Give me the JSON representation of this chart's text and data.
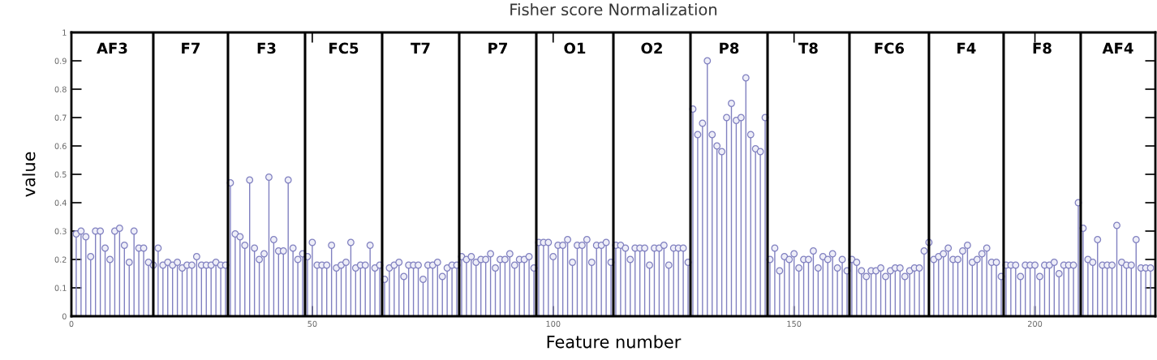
{
  "chart_data": {
    "type": "lollipop",
    "title": "Fisher score Normalization",
    "xlabel": "Feature number",
    "ylabel": "value",
    "x": [
      1,
      2,
      3,
      4,
      5,
      6,
      7,
      8,
      9,
      10,
      11,
      12,
      13,
      14,
      15,
      16,
      17,
      18,
      19,
      20,
      21,
      22,
      23,
      24,
      25,
      26,
      27,
      28,
      29,
      30,
      31,
      32,
      33,
      34,
      35,
      36,
      37,
      38,
      39,
      40,
      41,
      42,
      43,
      44,
      45,
      46,
      47,
      48,
      49,
      50,
      51,
      52,
      53,
      54,
      55,
      56,
      57,
      58,
      59,
      60,
      61,
      62,
      63,
      64,
      65,
      66,
      67,
      68,
      69,
      70,
      71,
      72,
      73,
      74,
      75,
      76,
      77,
      78,
      79,
      80,
      81,
      82,
      83,
      84,
      85,
      86,
      87,
      88,
      89,
      90,
      91,
      92,
      93,
      94,
      95,
      96,
      97,
      98,
      99,
      100,
      101,
      102,
      103,
      104,
      105,
      106,
      107,
      108,
      109,
      110,
      111,
      112,
      113,
      114,
      115,
      116,
      117,
      118,
      119,
      120,
      121,
      122,
      123,
      124,
      125,
      126,
      127,
      128,
      129,
      130,
      131,
      132,
      133,
      134,
      135,
      136,
      137,
      138,
      139,
      140,
      141,
      142,
      143,
      144,
      145,
      146,
      147,
      148,
      149,
      150,
      151,
      152,
      153,
      154,
      155,
      156,
      157,
      158,
      159,
      160,
      161,
      162,
      163,
      164,
      165,
      166,
      167,
      168,
      169,
      170,
      171,
      172,
      173,
      174,
      175,
      176,
      177,
      178,
      179,
      180,
      181,
      182,
      183,
      184,
      185,
      186,
      187,
      188,
      189,
      190,
      191,
      192,
      193,
      194,
      195,
      196,
      197,
      198,
      199,
      200,
      201,
      202,
      203,
      204,
      205,
      206,
      207,
      208,
      209,
      210,
      211,
      212,
      213,
      214,
      215,
      216,
      217,
      218,
      219,
      220,
      221,
      222,
      223,
      224
    ],
    "series": [
      {
        "color": "#8080c0",
        "values": [
          0.29,
          0.3,
          0.28,
          0.21,
          0.3,
          0.3,
          0.24,
          0.2,
          0.3,
          0.31,
          0.25,
          0.19,
          0.3,
          0.24,
          0.24,
          0.19,
          0.18,
          0.24,
          0.18,
          0.19,
          0.18,
          0.19,
          0.17,
          0.18,
          0.18,
          0.21,
          0.18,
          0.18,
          0.18,
          0.19,
          0.18,
          0.18,
          0.47,
          0.29,
          0.28,
          0.25,
          0.48,
          0.24,
          0.2,
          0.22,
          0.49,
          0.27,
          0.23,
          0.23,
          0.48,
          0.24,
          0.2,
          0.22,
          0.21,
          0.26,
          0.18,
          0.18,
          0.18,
          0.25,
          0.17,
          0.18,
          0.19,
          0.26,
          0.17,
          0.18,
          0.18,
          0.25,
          0.17,
          0.18,
          0.13,
          0.17,
          0.18,
          0.19,
          0.14,
          0.18,
          0.18,
          0.18,
          0.13,
          0.18,
          0.18,
          0.19,
          0.14,
          0.17,
          0.18,
          0.18,
          0.21,
          0.2,
          0.21,
          0.19,
          0.2,
          0.2,
          0.22,
          0.17,
          0.2,
          0.2,
          0.22,
          0.18,
          0.2,
          0.2,
          0.21,
          0.17,
          0.26,
          0.26,
          0.26,
          0.21,
          0.25,
          0.25,
          0.27,
          0.19,
          0.25,
          0.25,
          0.27,
          0.19,
          0.25,
          0.25,
          0.26,
          0.19,
          0.25,
          0.25,
          0.24,
          0.2,
          0.24,
          0.24,
          0.24,
          0.18,
          0.24,
          0.24,
          0.25,
          0.18,
          0.24,
          0.24,
          0.24,
          0.19,
          0.73,
          0.64,
          0.68,
          0.9,
          0.64,
          0.6,
          0.58,
          0.7,
          0.75,
          0.69,
          0.7,
          0.84,
          0.64,
          0.59,
          0.58,
          0.7,
          0.2,
          0.24,
          0.16,
          0.21,
          0.2,
          0.22,
          0.17,
          0.2,
          0.2,
          0.23,
          0.17,
          0.21,
          0.2,
          0.22,
          0.17,
          0.2,
          0.16,
          0.2,
          0.19,
          0.16,
          0.14,
          0.16,
          0.16,
          0.17,
          0.14,
          0.16,
          0.17,
          0.17,
          0.14,
          0.16,
          0.17,
          0.17,
          0.23,
          0.26,
          0.2,
          0.21,
          0.22,
          0.24,
          0.2,
          0.2,
          0.23,
          0.25,
          0.19,
          0.2,
          0.22,
          0.24,
          0.19,
          0.19,
          0.14,
          0.18,
          0.18,
          0.18,
          0.14,
          0.18,
          0.18,
          0.18,
          0.14,
          0.18,
          0.18,
          0.19,
          0.15,
          0.18,
          0.18,
          0.18,
          0.4,
          0.31,
          0.2,
          0.19,
          0.27,
          0.18,
          0.18,
          0.18,
          0.32,
          0.19,
          0.18,
          0.18,
          0.27,
          0.17,
          0.17,
          0.17
        ]
      }
    ],
    "marker": "circle",
    "xlim": [
      0,
      225
    ],
    "ylim": [
      0,
      1
    ],
    "xticks": [
      0,
      50,
      100,
      150,
      200
    ],
    "yticks": [
      0,
      0.1,
      0.2,
      0.3,
      0.4,
      0.5,
      0.6,
      0.7,
      0.8,
      0.9,
      1
    ],
    "ref_lines": [
      {
        "axis": "x",
        "value": 17,
        "color": "#000000"
      },
      {
        "axis": "x",
        "value": 32.5,
        "color": "#000000"
      },
      {
        "axis": "x",
        "value": 48.5,
        "color": "#000000"
      },
      {
        "axis": "x",
        "value": 64.5,
        "color": "#000000"
      },
      {
        "axis": "x",
        "value": 80.5,
        "color": "#000000"
      },
      {
        "axis": "x",
        "value": 96.5,
        "color": "#000000"
      },
      {
        "axis": "x",
        "value": 112.5,
        "color": "#000000"
      },
      {
        "axis": "x",
        "value": 128.5,
        "color": "#000000"
      },
      {
        "axis": "x",
        "value": 144.5,
        "color": "#000000"
      },
      {
        "axis": "x",
        "value": 161.5,
        "color": "#000000"
      },
      {
        "axis": "x",
        "value": 178,
        "color": "#000000"
      },
      {
        "axis": "x",
        "value": 193.5,
        "color": "#000000"
      },
      {
        "axis": "x",
        "value": 209.5,
        "color": "#000000"
      }
    ],
    "annotations": [
      "AF3",
      "F7",
      "F3",
      "FC5",
      "T7",
      "P7",
      "O1",
      "O2",
      "P8",
      "T8",
      "FC6",
      "F4",
      "F8",
      "AF4"
    ],
    "grid": false
  }
}
